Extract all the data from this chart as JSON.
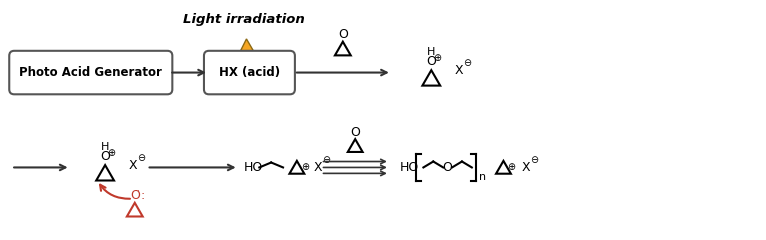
{
  "background_color": "#ffffff",
  "lightning_color": "#F5A623",
  "lightning_outline": "#8B6914",
  "arrow_color": "#333333",
  "red_color": "#C0392B",
  "box_text": "Photo Acid Generator",
  "hx_text": "HX (acid)",
  "light_text": "Light irradiation",
  "figsize": [
    7.66,
    2.4
  ],
  "dpi": 100
}
